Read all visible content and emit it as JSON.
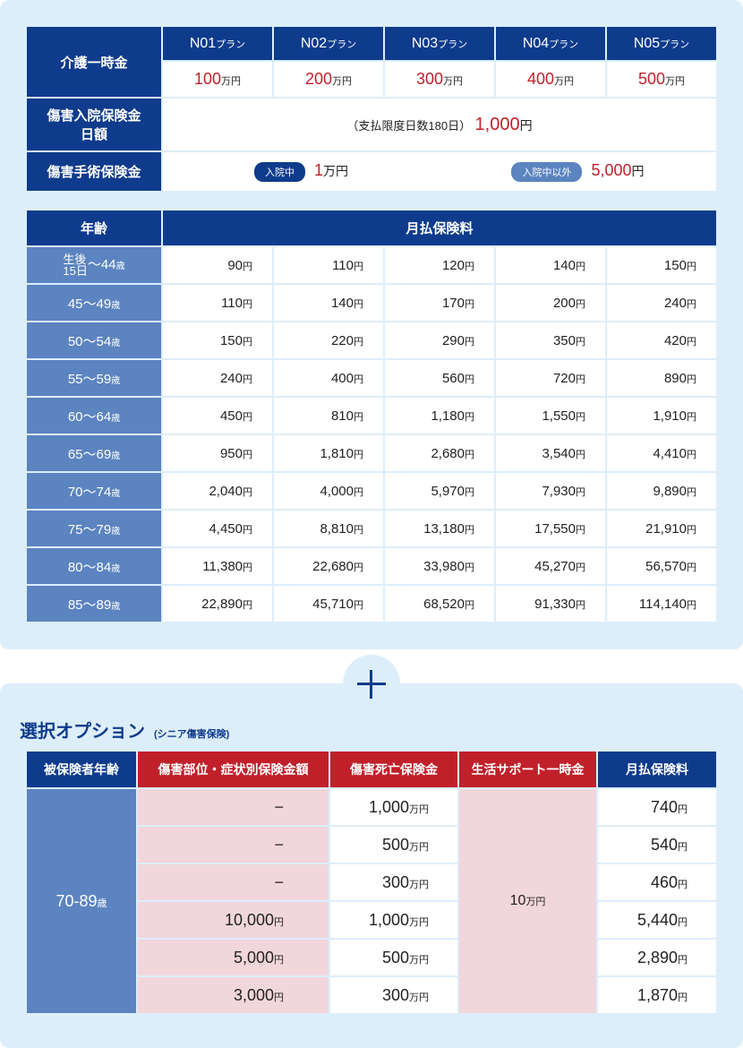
{
  "plan_table": {
    "nursing_label": "介護一時金",
    "plans": [
      {
        "name": "N01",
        "suffix": "プラン",
        "amount": "100",
        "unit": "万円"
      },
      {
        "name": "N02",
        "suffix": "プラン",
        "amount": "200",
        "unit": "万円"
      },
      {
        "name": "N03",
        "suffix": "プラン",
        "amount": "300",
        "unit": "万円"
      },
      {
        "name": "N04",
        "suffix": "プラン",
        "amount": "400",
        "unit": "万円"
      },
      {
        "name": "N05",
        "suffix": "プラン",
        "amount": "500",
        "unit": "万円"
      }
    ],
    "hospital_label_1": "傷害入院保険金",
    "hospital_label_2": "日額",
    "hospital_note": "（支払限度日数180日）",
    "hospital_value": "1,000",
    "yen": "円",
    "surgery_label": "傷害手術保険金",
    "surgery_in_badge": "入院中",
    "surgery_in_value": "1",
    "surgery_in_unit": "万円",
    "surgery_out_badge": "入院中以外",
    "surgery_out_value": "5,000",
    "surgery_out_unit": "円"
  },
  "premium_table": {
    "age_header": "年齢",
    "premium_header": "月払保険料",
    "first_age_line1": "生後",
    "first_age_line2": "15日",
    "first_age_range": "〜44",
    "age_unit": "歳",
    "yen": "円",
    "rows": [
      {
        "age": "",
        "values": [
          "90",
          "110",
          "120",
          "140",
          "150"
        ]
      },
      {
        "age": "45〜49",
        "values": [
          "110",
          "140",
          "170",
          "200",
          "240"
        ]
      },
      {
        "age": "50〜54",
        "values": [
          "150",
          "220",
          "290",
          "350",
          "420"
        ]
      },
      {
        "age": "55〜59",
        "values": [
          "240",
          "400",
          "560",
          "720",
          "890"
        ]
      },
      {
        "age": "60〜64",
        "values": [
          "450",
          "810",
          "1,180",
          "1,550",
          "1,910"
        ]
      },
      {
        "age": "65〜69",
        "values": [
          "950",
          "1,810",
          "2,680",
          "3,540",
          "4,410"
        ]
      },
      {
        "age": "70〜74",
        "values": [
          "2,040",
          "4,000",
          "5,970",
          "7,930",
          "9,890"
        ]
      },
      {
        "age": "75〜79",
        "values": [
          "4,450",
          "8,810",
          "13,180",
          "17,550",
          "21,910"
        ]
      },
      {
        "age": "80〜84",
        "values": [
          "11,380",
          "22,680",
          "33,980",
          "45,270",
          "56,570"
        ]
      },
      {
        "age": "85〜89",
        "values": [
          "22,890",
          "45,710",
          "68,520",
          "91,330",
          "114,140"
        ]
      }
    ]
  },
  "option": {
    "title": "選択オプション",
    "subtitle": "(シニア傷害保険)",
    "headers": [
      "被保険者年齢",
      "傷害部位・症状別保険金額",
      "傷害死亡保険金",
      "生活サポート一時金",
      "月払保険料"
    ],
    "age_range": "70-89",
    "age_unit": "歳",
    "support_value": "10",
    "support_unit": "万円",
    "yen": "円",
    "man_yen": "万円",
    "rows": [
      {
        "injury": "−",
        "injury_unit": "",
        "death": "1,000",
        "premium": "740"
      },
      {
        "injury": "−",
        "injury_unit": "",
        "death": "500",
        "premium": "540"
      },
      {
        "injury": "−",
        "injury_unit": "",
        "death": "300",
        "premium": "460"
      },
      {
        "injury": "10,000",
        "injury_unit": "円",
        "death": "1,000",
        "premium": "5,440"
      },
      {
        "injury": "5,000",
        "injury_unit": "円",
        "death": "500",
        "premium": "2,890"
      },
      {
        "injury": "3,000",
        "injury_unit": "円",
        "death": "300",
        "premium": "1,870"
      }
    ]
  },
  "colors": {
    "navy": "#0e3b8c",
    "steel_blue": "#5b84c0",
    "accent_red": "#c0202a",
    "pink": "#f1d6dc",
    "panel_bg": "#ddeefb"
  }
}
